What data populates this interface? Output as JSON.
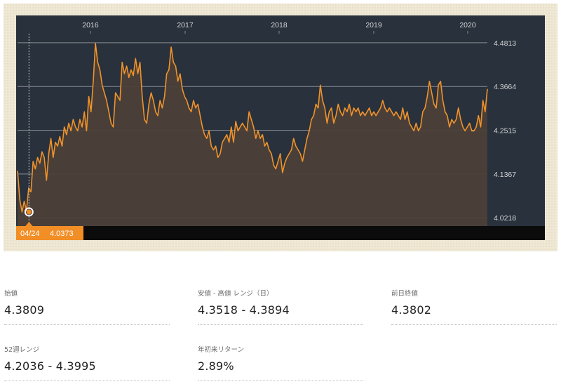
{
  "chart_data": {
    "type": "area",
    "x_tick_labels": [
      "2016",
      "2017",
      "2018",
      "2019",
      "2020"
    ],
    "y_tick_labels": [
      "4.4813",
      "4.3664",
      "4.2515",
      "4.1367",
      "4.0218"
    ],
    "ylim": [
      4.0,
      4.505
    ],
    "grid": "horizontal",
    "colors": {
      "line": "#f0922b",
      "fill": "#4b4038",
      "panel": "#28313c",
      "tooltip": "#f28e26"
    },
    "tooltip": {
      "date": "04/24",
      "value": "4.0373"
    },
    "series": [
      {
        "values": [
          4.145,
          4.07,
          4.037,
          4.065,
          4.04,
          4.1,
          4.09,
          4.17,
          4.15,
          4.18,
          4.165,
          4.195,
          4.18,
          4.12,
          4.19,
          4.23,
          4.18,
          4.22,
          4.21,
          4.235,
          4.21,
          4.26,
          4.24,
          4.27,
          4.25,
          4.28,
          4.26,
          4.25,
          4.28,
          4.26,
          4.3,
          4.25,
          4.34,
          4.3,
          4.38,
          4.48,
          4.43,
          4.41,
          4.37,
          4.35,
          4.33,
          4.3,
          4.27,
          4.26,
          4.35,
          4.34,
          4.33,
          4.43,
          4.4,
          4.42,
          4.39,
          4.41,
          4.395,
          4.44,
          4.4,
          4.43,
          4.34,
          4.28,
          4.27,
          4.32,
          4.35,
          4.33,
          4.3,
          4.29,
          4.33,
          4.31,
          4.34,
          4.4,
          4.41,
          4.47,
          4.43,
          4.42,
          4.38,
          4.4,
          4.36,
          4.34,
          4.33,
          4.31,
          4.3,
          4.33,
          4.31,
          4.32,
          4.29,
          4.26,
          4.24,
          4.23,
          4.25,
          4.21,
          4.2,
          4.21,
          4.18,
          4.19,
          4.22,
          4.23,
          4.24,
          4.22,
          4.26,
          4.22,
          4.275,
          4.25,
          4.26,
          4.27,
          4.26,
          4.25,
          4.3,
          4.28,
          4.26,
          4.23,
          4.25,
          4.23,
          4.24,
          4.21,
          4.22,
          4.2,
          4.19,
          4.16,
          4.15,
          4.17,
          4.19,
          4.14,
          4.165,
          4.18,
          4.19,
          4.2,
          4.23,
          4.21,
          4.2,
          4.19,
          4.17,
          4.2,
          4.23,
          4.25,
          4.28,
          4.29,
          4.32,
          4.31,
          4.37,
          4.33,
          4.31,
          4.27,
          4.3,
          4.31,
          4.27,
          4.29,
          4.32,
          4.3,
          4.29,
          4.31,
          4.3,
          4.32,
          4.29,
          4.31,
          4.3,
          4.31,
          4.29,
          4.3,
          4.29,
          4.3,
          4.31,
          4.29,
          4.3,
          4.29,
          4.3,
          4.31,
          4.33,
          4.31,
          4.3,
          4.31,
          4.3,
          4.29,
          4.3,
          4.29,
          4.28,
          4.31,
          4.28,
          4.3,
          4.27,
          4.26,
          4.25,
          4.27,
          4.25,
          4.26,
          4.3,
          4.31,
          4.34,
          4.38,
          4.35,
          4.32,
          4.31,
          4.37,
          4.38,
          4.33,
          4.3,
          4.29,
          4.26,
          4.28,
          4.27,
          4.28,
          4.31,
          4.28,
          4.26,
          4.25,
          4.26,
          4.27,
          4.25,
          4.25,
          4.26,
          4.29,
          4.26,
          4.33,
          4.3,
          4.36
        ]
      }
    ]
  },
  "stats": [
    {
      "label": "始値",
      "value": "4.3809"
    },
    {
      "label": "安値 - 高値 レンジ（日）",
      "value": "4.3518 - 4.3894"
    },
    {
      "label": "前日終値",
      "value": "4.3802"
    },
    {
      "label": "52週レンジ",
      "value": "4.2036 - 4.3995"
    },
    {
      "label": "年初来リターン",
      "value": "2.89%"
    }
  ]
}
